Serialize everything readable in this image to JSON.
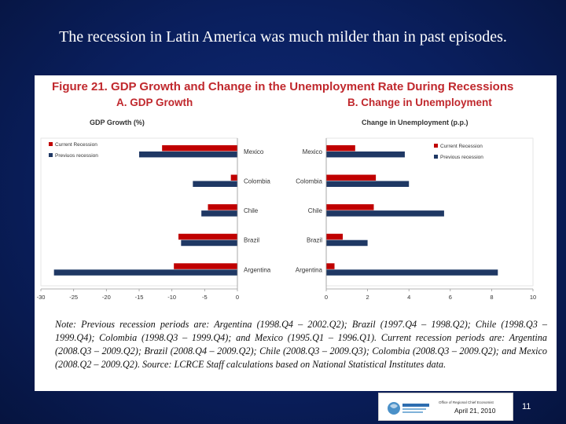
{
  "slide": {
    "title": "The recession in Latin America was much milder than in past episodes.",
    "page_number": "11",
    "date": "April 21, 2010",
    "office_text": "Office of Regional Chief Economist",
    "logo_text": "WORLD BANK"
  },
  "figure": {
    "title": "Figure 21. GDP Growth and Change in the Unemployment Rate During Recessions",
    "note": "Note: Previous recession periods are: Argentina (1998.Q4 – 2002.Q2); Brazil (1997.Q4 – 1998.Q2); Chile (1998.Q3 – 1999.Q4); Colombia (1998.Q3 – 1999.Q4); and Mexico (1995.Q1 – 1996.Q1). Current recession periods are: Argentina (2008.Q3 – 2009.Q2); Brazil (2008.Q4 – 2009.Q2); Chile (2008.Q3 – 2009.Q3); Colombia (2008.Q3 – 2009.Q2); and Mexico (2008.Q2 – 2009.Q2). Source: LCRCE Staff calculations based on National Statistical Institutes data."
  },
  "colors": {
    "current": "#c00000",
    "previous": "#1f3864"
  },
  "chart_data": [
    {
      "type": "bar",
      "orientation": "horizontal",
      "title": "A.  GDP Growth",
      "subtitle": "GDP Growth (%)",
      "categories": [
        "Mexico",
        "Colombia",
        "Chile",
        "Brazil",
        "Argentina"
      ],
      "series": [
        {
          "name": "Current Recession",
          "values": [
            -11.5,
            -1.0,
            -4.5,
            -9.0,
            -9.7
          ]
        },
        {
          "name": "Previuos recession",
          "values": [
            -15.0,
            -6.8,
            -5.5,
            -8.6,
            -28.0
          ]
        }
      ],
      "xlim": [
        -30,
        0
      ],
      "xticks": [
        "-30",
        "-25",
        "-20",
        "-15",
        "-10",
        "-5",
        "0"
      ],
      "legend": "top-left",
      "grid": false
    },
    {
      "type": "bar",
      "orientation": "horizontal",
      "title": "B.  Change in Unemployment",
      "subtitle": "Change in Unemployment (p.p.)",
      "categories": [
        "Mexico",
        "Colombia",
        "Chile",
        "Brazil",
        "Argentina"
      ],
      "series": [
        {
          "name": "Current Recession",
          "values": [
            1.4,
            2.4,
            2.3,
            0.8,
            0.4
          ]
        },
        {
          "name": "Previous recession",
          "values": [
            3.8,
            4.0,
            5.7,
            2.0,
            8.3
          ]
        }
      ],
      "xlim": [
        0,
        10
      ],
      "xticks": [
        "0",
        "2",
        "4",
        "6",
        "8",
        "10"
      ],
      "legend": "top-right",
      "grid": false
    }
  ]
}
